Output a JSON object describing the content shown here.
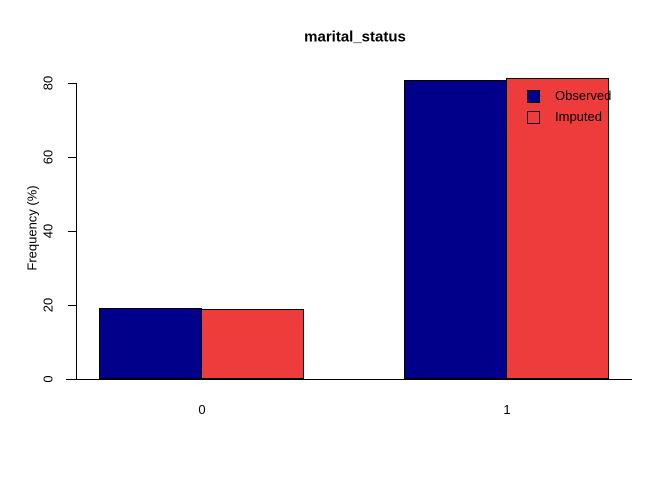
{
  "chart_data": {
    "type": "bar",
    "title": "marital_status",
    "xlabel": "",
    "ylabel": "Frequency (%)",
    "categories": [
      "0",
      "1"
    ],
    "series": [
      {
        "name": "Observed",
        "color": "#00008B",
        "values": [
          19.2,
          80.7
        ]
      },
      {
        "name": "Imputed",
        "color": "#EE3B3B",
        "values": [
          18.9,
          81.4
        ]
      }
    ],
    "ylim": [
      0,
      80
    ],
    "yticks": [
      "0",
      "20",
      "40",
      "60",
      "80"
    ],
    "grid": false,
    "legend_position": "top-right",
    "bar_border_color": "#000000",
    "axis_color": "#000000",
    "background_color": "#FFFFFF"
  }
}
